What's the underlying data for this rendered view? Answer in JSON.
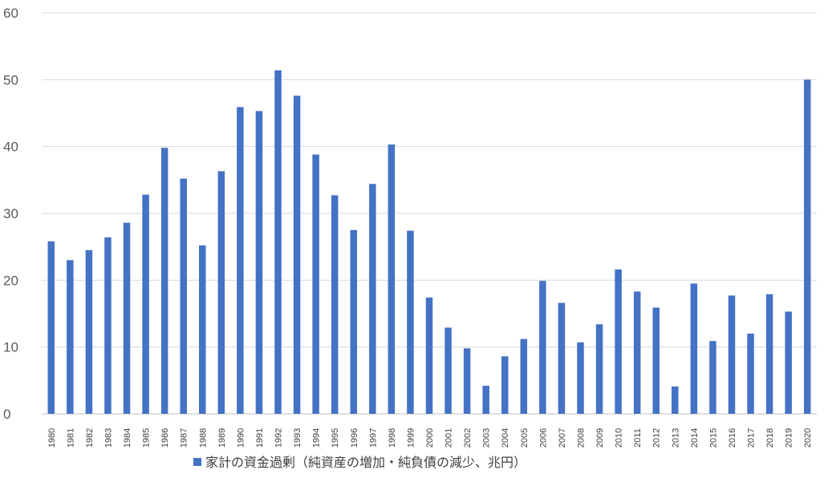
{
  "chart_data": {
    "type": "bar",
    "categories": [
      "1980",
      "1981",
      "1982",
      "1983",
      "1984",
      "1985",
      "1986",
      "1987",
      "1988",
      "1989",
      "1990",
      "1991",
      "1992",
      "1993",
      "1994",
      "1995",
      "1996",
      "1997",
      "1998",
      "1999",
      "2000",
      "2001",
      "2002",
      "2003",
      "2004",
      "2005",
      "2006",
      "2007",
      "2008",
      "2009",
      "2010",
      "2011",
      "2012",
      "2013",
      "2014",
      "2015",
      "2016",
      "2017",
      "2018",
      "2019",
      "2020"
    ],
    "series": [
      {
        "name": "家計の資金過剰（純資産の増加・純負債の減少、兆円）",
        "values": [
          25.8,
          23.0,
          24.5,
          26.4,
          28.6,
          32.8,
          39.8,
          35.2,
          25.2,
          36.3,
          45.9,
          45.3,
          51.4,
          47.6,
          38.8,
          32.7,
          27.5,
          34.4,
          40.3,
          27.4,
          17.4,
          12.9,
          9.8,
          4.2,
          8.6,
          11.2,
          19.9,
          16.6,
          10.7,
          13.4,
          21.6,
          18.3,
          15.9,
          4.1,
          19.5,
          10.9,
          17.7,
          12.0,
          17.9,
          15.3,
          50.0
        ]
      }
    ],
    "ylim": [
      0,
      60
    ],
    "yticks": [
      0,
      10,
      20,
      30,
      40,
      50,
      60
    ],
    "grid": true,
    "legend": "bottom",
    "title": "",
    "xlabel": "",
    "ylabel": "",
    "colors": {
      "bar": "#4472c4",
      "grid": "#d9d9d9",
      "text": "#595959"
    }
  }
}
